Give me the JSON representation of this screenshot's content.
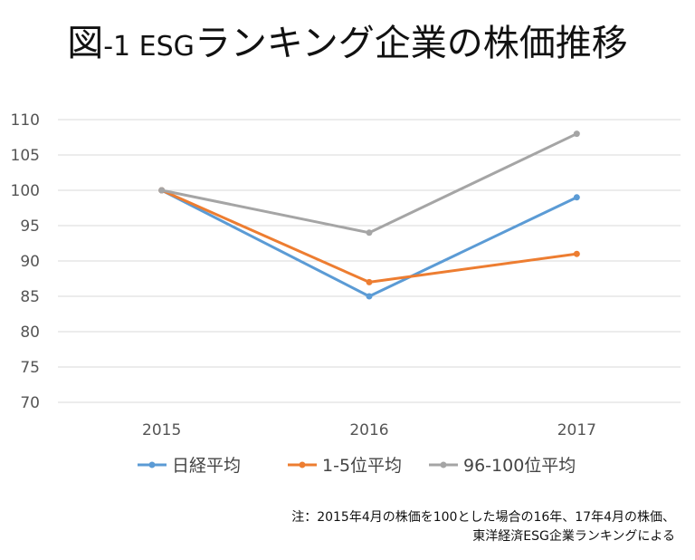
{
  "title": {
    "prefix": "図",
    "number": "-1 ESG",
    "rest": "ランキング企業の株価推移"
  },
  "note": {
    "line1": "注：2015年4月の株価を100とした場合の16年、17年4月の株価、",
    "line2": "東洋経済ESG企業ランキングによる"
  },
  "chart_data": {
    "type": "line",
    "title": "図-1 ESGランキング企業の株価推移",
    "x": [
      "2015",
      "2016",
      "2017"
    ],
    "ylim": [
      70,
      110
    ],
    "yticks": [
      70,
      75,
      80,
      85,
      90,
      95,
      100,
      105,
      110
    ],
    "grid": true,
    "legend_position": "bottom",
    "series": [
      {
        "name": "日経平均",
        "values": [
          100,
          85,
          99
        ],
        "color": "#5b9bd5"
      },
      {
        "name": "1-5位平均",
        "values": [
          100,
          87,
          91
        ],
        "color": "#ed7d31"
      },
      {
        "name": "96-100位平均",
        "values": [
          100,
          94,
          108
        ],
        "color": "#a5a5a5"
      }
    ]
  }
}
